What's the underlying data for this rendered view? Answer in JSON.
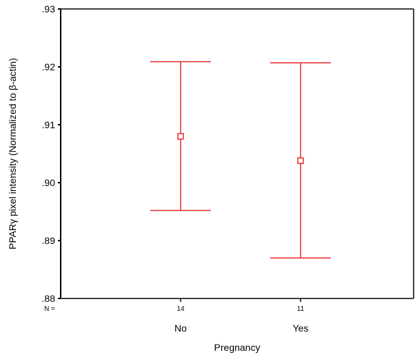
{
  "chart_data": {
    "type": "errorbar",
    "ylabel": "PPARγ pixel intensity (Normalized to β-actin)",
    "xlabel": "Pregnancy",
    "ylim": [
      0.88,
      0.93
    ],
    "yticks": [
      0.88,
      0.89,
      0.9,
      0.91,
      0.92,
      0.93
    ],
    "ytick_labels": [
      ".88",
      ".89",
      ".90",
      ".91",
      ".92",
      ".93"
    ],
    "n_label": "N =",
    "categories": [
      "No",
      "Yes"
    ],
    "n_values": [
      "14",
      "11"
    ],
    "series": [
      {
        "points": [
          {
            "category": "No",
            "n": 14,
            "mean": 0.908,
            "lower": 0.8952,
            "upper": 0.9209
          },
          {
            "category": "Yes",
            "n": 11,
            "mean": 0.9038,
            "lower": 0.887,
            "upper": 0.9207
          }
        ]
      }
    ],
    "color": "#e8262b",
    "grid": false,
    "legend": "none"
  }
}
